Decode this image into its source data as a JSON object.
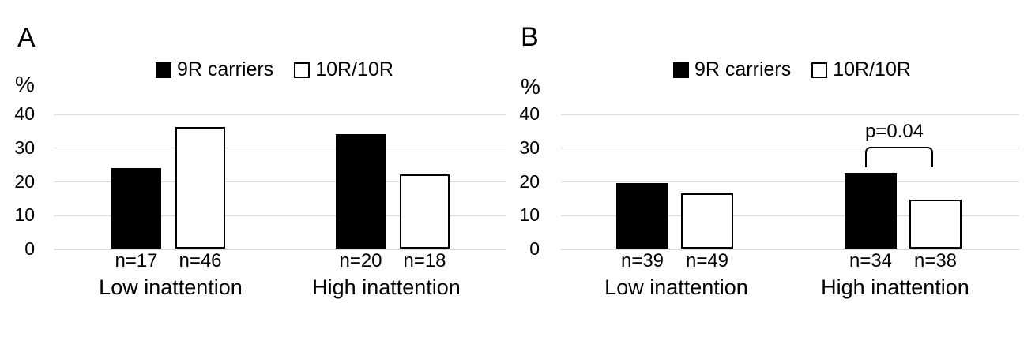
{
  "figure": {
    "background": "#ffffff",
    "text_color": "#000000",
    "gridline_color": "#d9d9d9",
    "bar_filled_color": "#000000",
    "bar_outlined_fill": "#ffffff",
    "bar_outline_color": "#000000"
  },
  "panels": [
    {
      "label": "A",
      "y_axis_unit": "%",
      "y_ticks": [
        40,
        30,
        20,
        10,
        0
      ],
      "legend": [
        {
          "label": "9R carriers",
          "swatch": "black-filled-square",
          "color": "#000000"
        },
        {
          "label": "10R/10R",
          "swatch": "white-outlined-square",
          "color": "#ffffff"
        }
      ],
      "groups": [
        {
          "label": "Low inattention",
          "bars": [
            {
              "series": "9R carriers",
              "value": 24,
              "n": "n=17"
            },
            {
              "series": "10R/10R",
              "value": 36,
              "n": "n=46"
            }
          ]
        },
        {
          "label": "High inattention",
          "bars": [
            {
              "series": "9R carriers",
              "value": 34,
              "n": "n=20"
            },
            {
              "series": "10R/10R",
              "value": 22,
              "n": "n=18"
            }
          ]
        }
      ]
    },
    {
      "label": "B",
      "y_axis_unit": "%",
      "y_ticks": [
        40,
        30,
        20,
        10,
        0
      ],
      "legend": [
        {
          "label": "9R carriers",
          "swatch": "black-filled-square",
          "color": "#000000"
        },
        {
          "label": "10R/10R",
          "swatch": "white-outlined-square",
          "color": "#ffffff"
        }
      ],
      "groups": [
        {
          "label": "Low inattention",
          "bars": [
            {
              "series": "9R carriers",
              "value": 19.5,
              "n": "n=39"
            },
            {
              "series": "10R/10R",
              "value": 16.5,
              "n": "n=49"
            }
          ]
        },
        {
          "label": "High inattention",
          "bars": [
            {
              "series": "9R carriers",
              "value": 22.5,
              "n": "n=34"
            },
            {
              "series": "10R/10R",
              "value": 14.5,
              "n": "n=38"
            }
          ]
        }
      ],
      "annotation": {
        "text": "p=0.04",
        "category": "High inattention",
        "between": [
          "9R carriers",
          "10R/10R"
        ]
      }
    }
  ],
  "chart_data": [
    {
      "type": "bar",
      "title": "A",
      "categories": [
        "Low inattention",
        "High inattention"
      ],
      "series": [
        {
          "name": "9R carriers",
          "values": [
            24,
            34
          ],
          "n_labels": [
            "n=17",
            "n=20"
          ],
          "fill": "#000000"
        },
        {
          "name": "10R/10R",
          "values": [
            36,
            22
          ],
          "n_labels": [
            "n=46",
            "n=18"
          ],
          "fill": "#ffffff"
        }
      ],
      "xlabel": "",
      "ylabel": "%",
      "ylim": [
        0,
        40
      ],
      "yticks": [
        0,
        10,
        20,
        30,
        40
      ],
      "grid": true,
      "legend_position": "top"
    },
    {
      "type": "bar",
      "title": "B",
      "categories": [
        "Low inattention",
        "High inattention"
      ],
      "series": [
        {
          "name": "9R carriers",
          "values": [
            19.5,
            22.5
          ],
          "n_labels": [
            "n=39",
            "n=34"
          ],
          "fill": "#000000"
        },
        {
          "name": "10R/10R",
          "values": [
            16.5,
            14.5
          ],
          "n_labels": [
            "n=49",
            "n=38"
          ],
          "fill": "#ffffff"
        }
      ],
      "xlabel": "",
      "ylabel": "%",
      "ylim": [
        0,
        40
      ],
      "yticks": [
        0,
        10,
        20,
        30,
        40
      ],
      "grid": true,
      "legend_position": "top",
      "annotations": [
        {
          "text": "p=0.04",
          "category": "High inattention",
          "between": [
            "9R carriers",
            "10R/10R"
          ]
        }
      ]
    }
  ]
}
